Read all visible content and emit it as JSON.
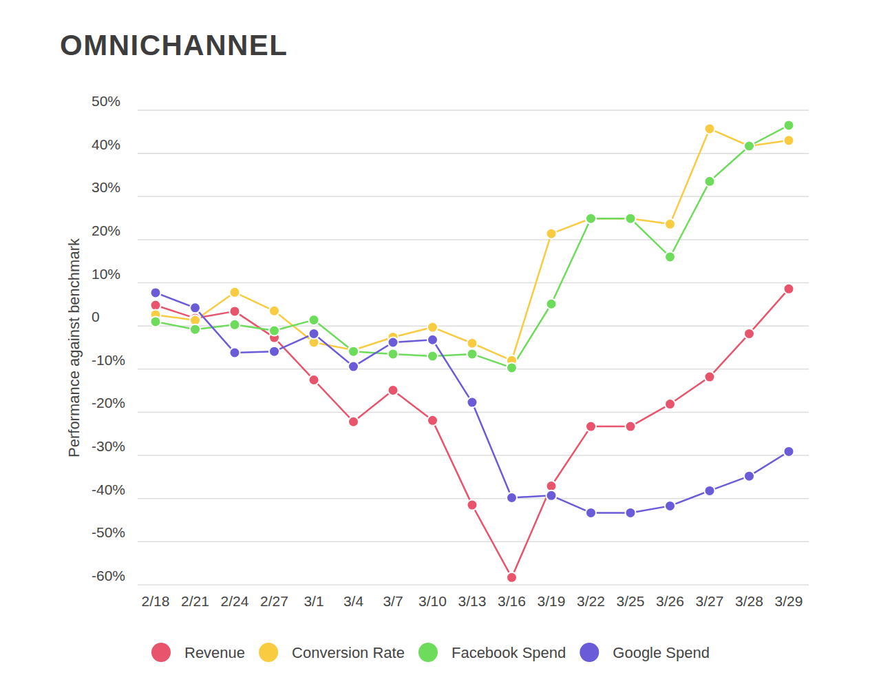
{
  "chart_data": {
    "type": "line",
    "title": "OMNICHANNEL",
    "y_label": "Performance against benchmark",
    "categories": [
      "2/18",
      "2/21",
      "2/24",
      "2/27",
      "3/1",
      "3/4",
      "3/7",
      "3/10",
      "3/13",
      "3/16",
      "3/19",
      "3/22",
      "3/25",
      "3/26",
      "3/27",
      "3/28",
      "3/29"
    ],
    "series": [
      {
        "name": "Revenue",
        "color": "#e8546b",
        "values": [
          4.8,
          1.8,
          3.4,
          -2.7,
          -12.5,
          -22.2,
          -14.9,
          -21.9,
          -41.5,
          -58.3,
          -37.1,
          -23.3,
          -23.3,
          -18.1,
          -11.8,
          -1.8,
          8.6
        ]
      },
      {
        "name": "Conversion Rate",
        "color": "#f9cb40",
        "values": [
          2.6,
          1.3,
          7.8,
          3.5,
          -3.8,
          -5.6,
          -2.6,
          -0.3,
          -4,
          -8,
          21.4,
          24.9,
          24.9,
          23.6,
          45.7,
          41.7,
          43
        ]
      },
      {
        "name": "Facebook Spend",
        "color": "#6ddc5a",
        "values": [
          1,
          -0.8,
          0.3,
          -1.1,
          1.4,
          -5.9,
          -6.5,
          -7,
          -6.5,
          -9.7,
          5.1,
          24.9,
          24.9,
          16,
          33.5,
          41.7,
          46.5
        ]
      },
      {
        "name": "Google Spend",
        "color": "#6a5bd9",
        "values": [
          7.7,
          4.2,
          -6.2,
          -5.9,
          -1.8,
          -9.4,
          -3.8,
          -3.2,
          -17.7,
          -39.8,
          -39.3,
          -43.3,
          -43.3,
          -41.7,
          -38.2,
          -34.8,
          -29.1
        ]
      }
    ],
    "ylim": [
      -60,
      50
    ],
    "yticks": [
      {
        "value": 50,
        "label": "50%"
      },
      {
        "value": 40,
        "label": "40%"
      },
      {
        "value": 30,
        "label": "30%"
      },
      {
        "value": 20,
        "label": "20%"
      },
      {
        "value": 10,
        "label": "10%"
      },
      0,
      {
        "value": -10,
        "label": "-10%"
      },
      {
        "value": -20,
        "label": "-20%"
      },
      {
        "value": -30,
        "label": "-30%"
      },
      {
        "value": -40,
        "label": "-40%"
      },
      {
        "value": -50,
        "label": "-50%"
      },
      {
        "value": -60,
        "label": "-60%"
      }
    ],
    "grid": true,
    "legend": "bottom",
    "marker": "circle",
    "line_style": "solid"
  }
}
